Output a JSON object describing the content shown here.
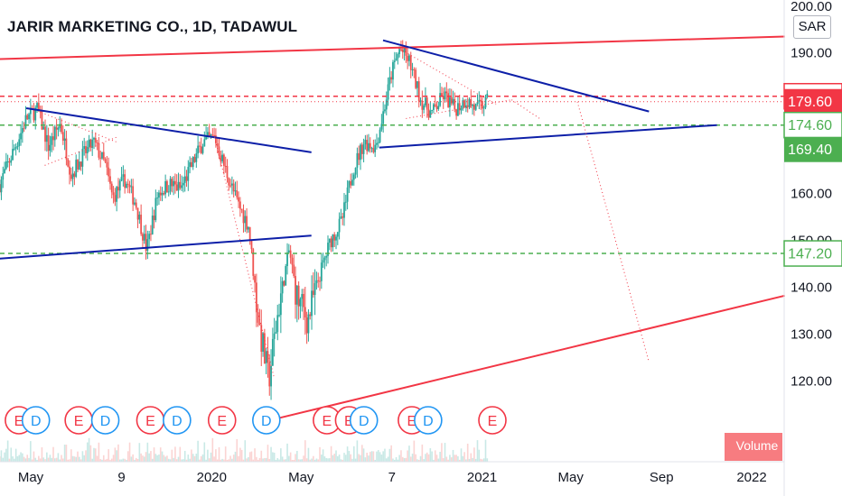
{
  "header": {
    "title": "JARIR MARKETING CO., 1D, TADAWUL",
    "currency": "SAR"
  },
  "chart_data": {
    "type": "candlestick",
    "title": "JARIR MARKETING CO., 1D, TADAWUL",
    "ylim": [
      111.5,
      201.3
    ],
    "y_ticks": [
      120,
      130,
      140,
      150,
      160,
      170,
      180,
      190,
      200
    ],
    "y_tick_labels": [
      "120.00",
      "130.00",
      "140.00",
      "150.00",
      "160.00",
      "170.00",
      "180.00",
      "190.00",
      "200.00"
    ],
    "x_ticks": [
      {
        "date": "2019-05-01",
        "label": "May"
      },
      {
        "date": "2019-09-01",
        "label": "9"
      },
      {
        "date": "2020-01-01",
        "label": "2020"
      },
      {
        "date": "2020-05-01",
        "label": "May"
      },
      {
        "date": "2020-09-01",
        "label": "7"
      },
      {
        "date": "2021-01-01",
        "label": "2021"
      },
      {
        "date": "2021-05-01",
        "label": "May"
      },
      {
        "date": "2021-09-01",
        "label": "Sep"
      },
      {
        "date": "2022-01-01",
        "label": "2022"
      }
    ],
    "price_path": [
      [
        "2019-03-20",
        162
      ],
      [
        "2019-04-10",
        170
      ],
      [
        "2019-04-25",
        176
      ],
      [
        "2019-05-10",
        178
      ],
      [
        "2019-05-25",
        170
      ],
      [
        "2019-06-10",
        175
      ],
      [
        "2019-06-25",
        164
      ],
      [
        "2019-07-10",
        168
      ],
      [
        "2019-07-25",
        171
      ],
      [
        "2019-08-10",
        166
      ],
      [
        "2019-08-20",
        159
      ],
      [
        "2019-09-05",
        163
      ],
      [
        "2019-09-20",
        158
      ],
      [
        "2019-10-05",
        148
      ],
      [
        "2019-10-20",
        160
      ],
      [
        "2019-11-05",
        162
      ],
      [
        "2019-11-20",
        161
      ],
      [
        "2019-12-05",
        166
      ],
      [
        "2019-12-20",
        171
      ],
      [
        "2020-01-05",
        172
      ],
      [
        "2020-01-20",
        165
      ],
      [
        "2020-02-05",
        158
      ],
      [
        "2020-02-20",
        153
      ],
      [
        "2020-03-05",
        132
      ],
      [
        "2020-03-18",
        120
      ],
      [
        "2020-04-01",
        136
      ],
      [
        "2020-04-15",
        148
      ],
      [
        "2020-04-25",
        138
      ],
      [
        "2020-05-10",
        133
      ],
      [
        "2020-05-25",
        142
      ],
      [
        "2020-06-10",
        150
      ],
      [
        "2020-06-25",
        154
      ],
      [
        "2020-07-10",
        165
      ],
      [
        "2020-07-25",
        171
      ],
      [
        "2020-08-10",
        170
      ],
      [
        "2020-08-20",
        177
      ],
      [
        "2020-09-01",
        186
      ],
      [
        "2020-09-12",
        191
      ],
      [
        "2020-09-25",
        188
      ],
      [
        "2020-10-10",
        180
      ],
      [
        "2020-10-25",
        177
      ],
      [
        "2020-11-10",
        181
      ],
      [
        "2020-11-25",
        178
      ],
      [
        "2020-12-10",
        180
      ],
      [
        "2020-12-25",
        178
      ],
      [
        "2021-01-08",
        179.6
      ]
    ],
    "horizontal_levels": [
      {
        "value": 180.75,
        "label": "180.75",
        "color": "#f23645",
        "style": "dashed",
        "label_style": "outline"
      },
      {
        "value": 179.6,
        "label": "179.60",
        "color": "#f23645",
        "style": "dotted",
        "label_style": "filled"
      },
      {
        "value": 174.6,
        "label": "174.60",
        "color": "#4caf50",
        "style": "dashed",
        "label_style": "outline"
      },
      {
        "value": 169.4,
        "label": "169.40",
        "color": "#4caf50",
        "style": "none",
        "label_style": "filled"
      },
      {
        "value": 147.2,
        "label": "147.20",
        "color": "#4caf50",
        "style": "dashed",
        "label_style": "outline"
      }
    ],
    "trendlines": [
      {
        "color": "#f23645",
        "width": 2,
        "from": [
          "2019-03-20",
          188.7
        ],
        "to": [
          "2022-02-15",
          193.5
        ]
      },
      {
        "color": "#f23645",
        "width": 2,
        "from": [
          "2020-03-25",
          111.8
        ],
        "to": [
          "2022-02-15",
          138.2
        ]
      },
      {
        "color": "#0d1fa8",
        "width": 2,
        "from": [
          "2019-04-25",
          178.2
        ],
        "to": [
          "2020-05-15",
          168.8
        ]
      },
      {
        "color": "#0d1fa8",
        "width": 2,
        "from": [
          "2019-03-20",
          146.1
        ],
        "to": [
          "2020-05-15",
          151
        ]
      },
      {
        "color": "#0d1fa8",
        "width": 2,
        "from": [
          "2020-08-20",
          192.7
        ],
        "to": [
          "2021-08-15",
          177.5
        ]
      },
      {
        "color": "#0d1fa8",
        "width": 2,
        "from": [
          "2020-08-15",
          169.8
        ],
        "to": [
          "2021-11-15",
          174.6
        ]
      }
    ],
    "dotted_lines": [
      {
        "from": [
          "2019-05-20",
          177
        ],
        "to": [
          "2019-08-25",
          171
        ]
      },
      {
        "from": [
          "2019-05-20",
          166
        ],
        "to": [
          "2019-08-25",
          172
        ]
      },
      {
        "from": [
          "2020-01-05",
          172
        ],
        "to": [
          "2020-03-25",
          121
        ]
      },
      {
        "from": [
          "2020-09-10",
          191
        ],
        "to": [
          "2021-01-20",
          179
        ]
      },
      {
        "from": [
          "2020-09-20",
          176
        ],
        "to": [
          "2021-02-10",
          180
        ]
      },
      {
        "from": [
          "2021-02-10",
          180
        ],
        "to": [
          "2021-03-20",
          176
        ]
      },
      {
        "from": [
          "2021-05-10",
          179.6
        ],
        "to": [
          "2021-08-15",
          124
        ]
      }
    ],
    "events": [
      {
        "date": "2019-04-15",
        "type": "E"
      },
      {
        "date": "2019-05-08",
        "type": "D"
      },
      {
        "date": "2019-07-05",
        "type": "E"
      },
      {
        "date": "2019-08-10",
        "type": "D"
      },
      {
        "date": "2019-10-10",
        "type": "E"
      },
      {
        "date": "2019-11-15",
        "type": "D"
      },
      {
        "date": "2020-01-15",
        "type": "E"
      },
      {
        "date": "2020-03-15",
        "type": "D"
      },
      {
        "date": "2020-06-05",
        "type": "E"
      },
      {
        "date": "2020-07-05",
        "type": "E"
      },
      {
        "date": "2020-07-25",
        "type": "D"
      },
      {
        "date": "2020-09-28",
        "type": "E"
      },
      {
        "date": "2020-10-20",
        "type": "D"
      },
      {
        "date": "2021-01-15",
        "type": "E"
      }
    ],
    "volume_label": "Volume"
  },
  "colors": {
    "up": "#26a69a",
    "down": "#ef5350",
    "resistance": "#f23645",
    "support": "#4caf50",
    "trend_blue": "#0d1fa8",
    "dividend": "#2196f3",
    "earnings": "#f23645"
  }
}
